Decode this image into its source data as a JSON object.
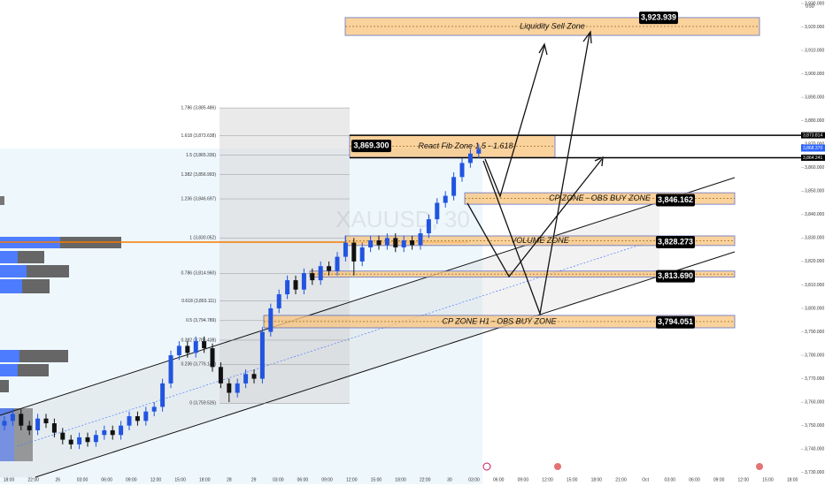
{
  "chart_data": {
    "type": "candlestick",
    "watermark": "XAUUSD, 30",
    "currency": "USD",
    "up_color": "#2154e0",
    "down_color": "#111111",
    "ylim": [
      3725,
      3931.5
    ],
    "yticks": [
      {
        "value": 3730,
        "label": "3,730.000"
      },
      {
        "value": 3740,
        "label": "3,740.000"
      },
      {
        "value": 3750,
        "label": "3,750.000"
      },
      {
        "value": 3760,
        "label": "3,760.000"
      },
      {
        "value": 3770,
        "label": "3,770.000"
      },
      {
        "value": 3780,
        "label": "3,780.000"
      },
      {
        "value": 3790,
        "label": "3,790.000"
      },
      {
        "value": 3800,
        "label": "3,800.000"
      },
      {
        "value": 3810,
        "label": "3,810.000"
      },
      {
        "value": 3820,
        "label": "3,820.000"
      },
      {
        "value": 3830,
        "label": "3,830.000"
      },
      {
        "value": 3840,
        "label": "3,840.000"
      },
      {
        "value": 3850,
        "label": "3,850.000"
      },
      {
        "value": 3860,
        "label": "3,860.000"
      },
      {
        "value": 3870,
        "label": "3,870.000"
      },
      {
        "value": 3880,
        "label": "3,880.000"
      },
      {
        "value": 3890,
        "label": "3,890.000"
      },
      {
        "value": 3900,
        "label": "3,900.000"
      },
      {
        "value": 3910,
        "label": "3,910.000"
      },
      {
        "value": 3920,
        "label": "3,920.000"
      },
      {
        "value": 3930,
        "label": "3,930.000"
      }
    ],
    "x": [
      "18:00",
      "22:00",
      "26",
      "03:00",
      "06:00",
      "09:00",
      "12:00",
      "15:00",
      "18:00",
      "28",
      "29",
      "03:00",
      "06:00",
      "09:00",
      "12:00",
      "15:00",
      "18:00",
      "22:00",
      "30",
      "03:00",
      "06:00",
      "09:00",
      "12:00",
      "15:00",
      "18:00",
      "21:00",
      "Oct",
      "03:00",
      "06:00",
      "09:00",
      "12:00",
      "15:00",
      "18:00"
    ],
    "candles": [
      [
        3750,
        3754,
        3748,
        3752
      ],
      [
        3752,
        3757,
        3750,
        3755
      ],
      [
        3755,
        3757,
        3748,
        3750
      ],
      [
        3750,
        3752,
        3746,
        3748
      ],
      [
        3748,
        3755,
        3746,
        3753
      ],
      [
        3753,
        3755,
        3749,
        3751
      ],
      [
        3751,
        3753,
        3745,
        3747
      ],
      [
        3747,
        3749,
        3742,
        3744
      ],
      [
        3744,
        3746,
        3740,
        3742
      ],
      [
        3742,
        3747,
        3740,
        3745
      ],
      [
        3745,
        3747,
        3741,
        3743
      ],
      [
        3743,
        3748,
        3741,
        3746
      ],
      [
        3746,
        3750,
        3744,
        3748
      ],
      [
        3748,
        3750,
        3744,
        3746
      ],
      [
        3746,
        3752,
        3744,
        3750
      ],
      [
        3750,
        3756,
        3748,
        3754
      ],
      [
        3754,
        3756,
        3750,
        3752
      ],
      [
        3752,
        3758,
        3750,
        3756
      ],
      [
        3756,
        3760,
        3754,
        3758
      ],
      [
        3758,
        3770,
        3756,
        3768
      ],
      [
        3768,
        3782,
        3766,
        3780
      ],
      [
        3780,
        3786,
        3778,
        3784
      ],
      [
        3784,
        3786,
        3779,
        3781
      ],
      [
        3781,
        3788,
        3779,
        3786
      ],
      [
        3786,
        3788,
        3781,
        3783
      ],
      [
        3783,
        3785,
        3773,
        3775
      ],
      [
        3775,
        3777,
        3766,
        3768
      ],
      [
        3768,
        3770,
        3760,
        3764
      ],
      [
        3764,
        3770,
        3762,
        3768
      ],
      [
        3768,
        3774,
        3766,
        3772
      ],
      [
        3772,
        3774,
        3768,
        3770
      ],
      [
        3770,
        3792,
        3768,
        3790
      ],
      [
        3790,
        3802,
        3788,
        3800
      ],
      [
        3800,
        3808,
        3798,
        3806
      ],
      [
        3806,
        3814,
        3804,
        3812
      ],
      [
        3812,
        3814,
        3806,
        3808
      ],
      [
        3808,
        3817,
        3806,
        3815
      ],
      [
        3815,
        3817,
        3810,
        3812
      ],
      [
        3812,
        3820,
        3810,
        3818
      ],
      [
        3818,
        3820,
        3814,
        3816
      ],
      [
        3816,
        3824,
        3814,
        3822
      ],
      [
        3822,
        3831,
        3820,
        3828
      ],
      [
        3828,
        3830,
        3814,
        3820
      ],
      [
        3820,
        3828,
        3818,
        3826
      ],
      [
        3826,
        3831,
        3824,
        3829
      ],
      [
        3829,
        3831,
        3825,
        3827
      ],
      [
        3827,
        3832,
        3825,
        3830
      ],
      [
        3830,
        3832,
        3824,
        3826
      ],
      [
        3826,
        3831,
        3824,
        3829
      ],
      [
        3829,
        3831,
        3825,
        3827
      ],
      [
        3827,
        3834,
        3825,
        3832
      ],
      [
        3832,
        3840,
        3830,
        3838
      ],
      [
        3838,
        3847,
        3836,
        3845
      ],
      [
        3845,
        3850,
        3843,
        3848
      ],
      [
        3848,
        3858,
        3846,
        3856
      ],
      [
        3856,
        3864,
        3854,
        3862
      ],
      [
        3862,
        3868,
        3860,
        3866
      ],
      [
        3866,
        3870,
        3864,
        3868
      ]
    ],
    "fib_levels": [
      {
        "value": 3885.486,
        "label": "1.786 (3,885.486)"
      },
      {
        "value": 3873.638,
        "label": "1.618 (3,873.638)"
      },
      {
        "value": 3865.336,
        "label": "1.5 (3,865.336)"
      },
      {
        "value": 3856.993,
        "label": "1.382 (3,856.993)"
      },
      {
        "value": 3846.697,
        "label": "1.236 (3,846.697)"
      },
      {
        "value": 3830.052,
        "label": "1 (3,830.052)"
      },
      {
        "value": 3814.96,
        "label": "0.786 (3,814.960)"
      },
      {
        "value": 3803.111,
        "label": "0.618 (3,803.111)"
      },
      {
        "value": 3794.789,
        "label": "0.5 (3,794.789)"
      },
      {
        "value": 3786.438,
        "label": "0.382 (3,786.438)"
      },
      {
        "value": 3776.142,
        "label": "0.236 (3,776.142)"
      },
      {
        "value": 3759.526,
        "label": "0 (3,759.526)"
      }
    ],
    "zones": [
      {
        "label": "Liquidity Sell Zone",
        "top": 3924,
        "bottom": 3916.4,
        "value": 3923.939,
        "value_label": "3,923.939"
      },
      {
        "label": "React Fib Zone  1.5 - 1.618",
        "top": 3873.8,
        "bottom": 3864.4,
        "value": 3869.3,
        "value_label": "3,869.300"
      },
      {
        "label": "CP ZONE - OBS BUY ZONE",
        "top": 3849.3,
        "bottom": 3844.4,
        "value": 3846.162,
        "value_label": "3,846.162"
      },
      {
        "label": "VOLUME ZONE",
        "top": 3830.9,
        "bottom": 3826.8,
        "value": 3828.273,
        "value_label": "3,828.273"
      },
      {
        "top": 3815.9,
        "bottom": 3813.3,
        "value": 3813.69,
        "value_label": "3,813.690"
      },
      {
        "label": "CP ZONE H1 - OBS BUY ZONE",
        "top": 3797.0,
        "bottom": 3791.7,
        "value": 3794.051,
        "value_label": "3,794.051"
      }
    ],
    "price_lines": [
      {
        "value": 3873.814,
        "label": "3,873.814"
      },
      {
        "value": 3864.241,
        "label": "3,864.241"
      }
    ],
    "last_price": {
      "value": 3868.37,
      "label": "3,868.370"
    }
  }
}
